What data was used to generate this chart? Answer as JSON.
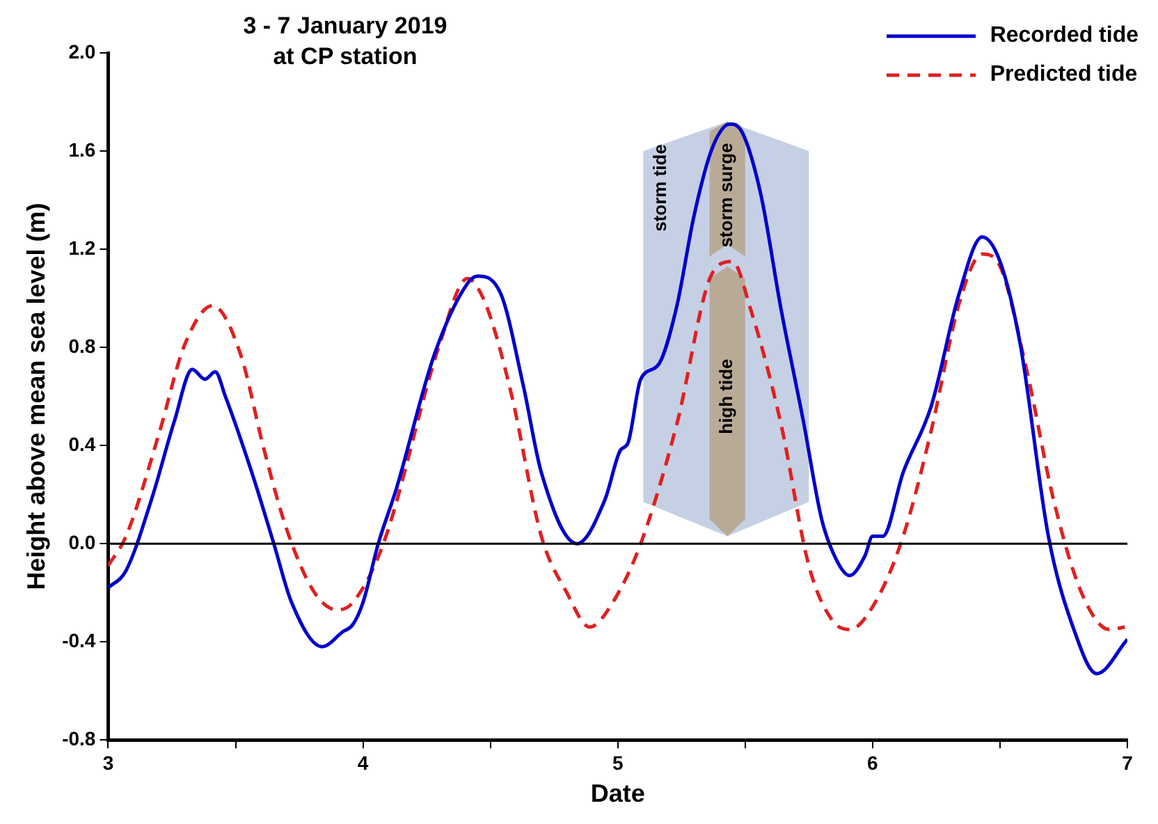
{
  "chart_data": {
    "type": "line",
    "title": "3 - 7 January 2019\nat CP station",
    "xlabel": "Date",
    "ylabel": "Height above mean sea level (m)",
    "xlim": [
      3,
      7
    ],
    "xticks": [
      3,
      {
        "value": 3.5,
        "label": null
      },
      4,
      {
        "value": 4.5,
        "label": null
      },
      5,
      {
        "value": 5.5,
        "label": null
      },
      6,
      {
        "value": 6.5,
        "label": null
      },
      7
    ],
    "ylim": [
      -0.8,
      2
    ],
    "yticks": [
      {
        "value": -0.8,
        "label": "-0.8"
      },
      {
        "value": -0.4,
        "label": "-0.4"
      },
      {
        "value": 0,
        "label": "0.0"
      },
      {
        "value": 0.4,
        "label": "0.4"
      },
      {
        "value": 0.8,
        "label": "0.8"
      },
      {
        "value": 1.2,
        "label": "1.2"
      },
      {
        "value": 1.6,
        "label": "1.6"
      },
      {
        "value": 2,
        "label": "2.0"
      }
    ],
    "grid": false,
    "legend": "top right",
    "marker": "none",
    "ref_lines": [
      {
        "axis": "y",
        "value": 0,
        "color": "#000000"
      }
    ],
    "annotations": [
      "storm tide",
      "storm surge",
      "high tide"
    ],
    "series": [
      {
        "name": "Recorded tide",
        "color": "#0000cc",
        "line_style": "solid",
        "x": [
          3.0,
          3.07,
          3.17,
          3.26,
          3.33,
          3.38,
          3.42,
          3.46,
          3.57,
          3.65,
          3.72,
          3.84,
          3.92,
          3.96,
          4.0,
          4.06,
          4.13,
          4.28,
          4.41,
          4.45,
          4.54,
          4.63,
          4.7,
          4.84,
          4.95,
          5.01,
          5.04,
          5.09,
          5.16,
          5.23,
          5.3,
          5.37,
          5.44,
          5.48,
          5.56,
          5.64,
          5.73,
          5.8,
          5.86,
          5.91,
          5.97,
          6.0,
          6.04,
          6.12,
          6.23,
          6.34,
          6.43,
          6.5,
          6.58,
          6.69,
          6.79,
          6.88,
          7.0
        ],
        "values": [
          -0.18,
          -0.11,
          0.18,
          0.5,
          0.71,
          0.67,
          0.7,
          0.6,
          0.27,
          0.0,
          -0.24,
          -0.42,
          -0.36,
          -0.33,
          -0.24,
          0.0,
          0.22,
          0.77,
          1.06,
          1.09,
          1.02,
          0.64,
          0.29,
          0.0,
          0.18,
          0.38,
          0.41,
          0.67,
          0.73,
          0.96,
          1.34,
          1.61,
          1.71,
          1.69,
          1.43,
          0.96,
          0.49,
          0.1,
          -0.07,
          -0.13,
          -0.05,
          0.03,
          0.03,
          0.29,
          0.56,
          1.02,
          1.25,
          1.15,
          0.81,
          0.03,
          -0.35,
          -0.53,
          -0.39
        ]
      },
      {
        "name": "Predicted tide",
        "color": "#e02020",
        "line_style": "dashed",
        "x": [
          3.0,
          3.07,
          3.2,
          3.3,
          3.41,
          3.52,
          3.61,
          3.7,
          3.81,
          3.9,
          3.96,
          4.08,
          4.3,
          4.41,
          4.48,
          4.58,
          4.7,
          4.8,
          4.89,
          4.98,
          5.09,
          5.23,
          5.37,
          5.45,
          5.52,
          5.64,
          5.75,
          5.84,
          5.91,
          6.01,
          6.12,
          6.23,
          6.34,
          6.43,
          6.49,
          6.6,
          6.71,
          6.82,
          6.93,
          6.99
        ],
        "values": [
          -0.09,
          0.03,
          0.45,
          0.81,
          0.97,
          0.77,
          0.39,
          0.06,
          -0.2,
          -0.27,
          -0.24,
          0.0,
          0.81,
          1.08,
          0.98,
          0.62,
          0.03,
          -0.2,
          -0.34,
          -0.24,
          0.0,
          0.48,
          1.1,
          1.15,
          0.96,
          0.49,
          -0.09,
          -0.31,
          -0.35,
          -0.24,
          0.03,
          0.46,
          0.98,
          1.18,
          1.15,
          0.73,
          0.18,
          -0.2,
          -0.35,
          -0.34
        ]
      }
    ]
  }
}
